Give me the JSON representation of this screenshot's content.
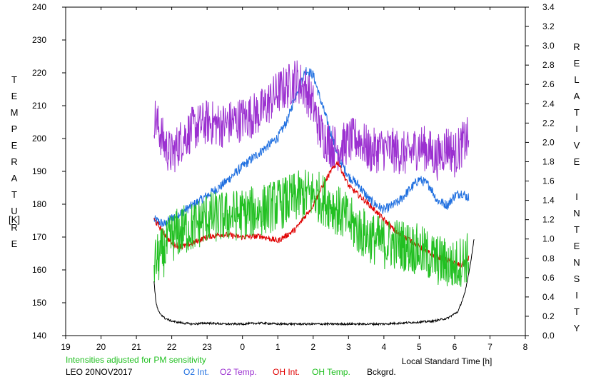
{
  "chart_data": {
    "type": "line",
    "x_axis": {
      "label": "Local Standard Time [h]",
      "ticks": [
        "19",
        "20",
        "21",
        "22",
        "23",
        "0",
        "1",
        "2",
        "3",
        "4",
        "5",
        "6",
        "7",
        "8"
      ],
      "range": [
        19,
        32
      ]
    },
    "y_left": {
      "label_letters": [
        "T",
        "E",
        "M",
        "P",
        "E",
        "R",
        "A",
        "T",
        "U",
        "R",
        "E",
        "[K]"
      ],
      "ticks": [
        "140",
        "150",
        "160",
        "170",
        "180",
        "190",
        "200",
        "210",
        "220",
        "230",
        "240"
      ],
      "range": [
        140,
        240
      ]
    },
    "y_right": {
      "label_letters": [
        "R",
        "E",
        "L",
        "A",
        "T",
        "I",
        "V",
        "E",
        "I",
        "N",
        "T",
        "E",
        "N",
        "S",
        "I",
        "T",
        "Y"
      ],
      "ticks": [
        "0.0",
        "0.2",
        "0.4",
        "0.6",
        "0.8",
        "1.0",
        "1.2",
        "1.4",
        "1.6",
        "1.8",
        "2.0",
        "2.2",
        "2.4",
        "2.6",
        "2.8",
        "3.0",
        "3.2",
        "3.4"
      ],
      "range": [
        0,
        3.4
      ]
    },
    "note": "Intensities adjusted for PM sensitivity",
    "station": "LEO 20NOV2017",
    "series": [
      {
        "name": "O2 Int.",
        "axis": "right",
        "color": "#1f6fe0",
        "noise": 0.05,
        "x": [
          21.5,
          21.8,
          22.0,
          22.3,
          22.6,
          23.0,
          23.4,
          24.0,
          24.5,
          25.0,
          25.3,
          25.5,
          25.8,
          26.0,
          26.2,
          26.5,
          26.7,
          27.0,
          27.3,
          27.6,
          28.0,
          28.4,
          28.7,
          29.0,
          29.3,
          29.5,
          29.8,
          30.0,
          30.2,
          30.4
        ],
        "y": [
          1.2,
          1.15,
          1.22,
          1.28,
          1.35,
          1.45,
          1.55,
          1.75,
          1.9,
          2.05,
          2.25,
          2.5,
          2.75,
          2.7,
          2.45,
          2.1,
          1.85,
          1.65,
          1.55,
          1.4,
          1.3,
          1.38,
          1.5,
          1.62,
          1.55,
          1.4,
          1.35,
          1.45,
          1.48,
          1.42
        ]
      },
      {
        "name": "O2 Temp.",
        "axis": "left",
        "color": "#9b30d0",
        "noise": 7,
        "x": [
          21.5,
          21.8,
          22.0,
          22.3,
          22.6,
          23.0,
          23.4,
          24.0,
          24.5,
          25.0,
          25.3,
          25.5,
          25.8,
          26.0,
          26.2,
          26.5,
          26.7,
          27.0,
          27.3,
          27.6,
          28.0,
          28.4,
          28.7,
          29.0,
          29.3,
          29.5,
          29.8,
          30.0,
          30.2,
          30.4
        ],
        "y": [
          207,
          198,
          195,
          200,
          203,
          205,
          204,
          206,
          208,
          214,
          216,
          218,
          215,
          210,
          202,
          198,
          197,
          199,
          200,
          196,
          197,
          196,
          195,
          198,
          196,
          194,
          198,
          195,
          198,
          200
        ]
      },
      {
        "name": "OH Int.",
        "axis": "right",
        "color": "#e00000",
        "noise": 0.03,
        "x": [
          21.5,
          21.8,
          22.0,
          22.3,
          22.6,
          23.0,
          23.4,
          24.0,
          24.5,
          25.0,
          25.3,
          25.5,
          25.8,
          26.0,
          26.2,
          26.5,
          26.7,
          27.0,
          27.3,
          27.6,
          28.0,
          28.4,
          28.7,
          29.0,
          29.3,
          29.5,
          29.8,
          30.0,
          30.2,
          30.4
        ],
        "y": [
          1.2,
          1.05,
          0.95,
          0.92,
          0.96,
          1.02,
          1.05,
          1.02,
          1.03,
          0.98,
          1.05,
          1.1,
          1.25,
          1.35,
          1.5,
          1.7,
          1.8,
          1.55,
          1.45,
          1.35,
          1.2,
          1.05,
          1.0,
          0.92,
          0.85,
          0.82,
          0.78,
          0.75,
          0.72,
          0.8
        ]
      },
      {
        "name": "OH Temp.",
        "axis": "left",
        "color": "#22c022",
        "noise": 8,
        "x": [
          21.5,
          21.8,
          22.0,
          22.3,
          22.6,
          23.0,
          23.4,
          24.0,
          24.5,
          25.0,
          25.3,
          25.5,
          25.8,
          26.0,
          26.2,
          26.5,
          26.7,
          27.0,
          27.3,
          27.6,
          28.0,
          28.4,
          28.7,
          29.0,
          29.3,
          29.5,
          29.8,
          30.0,
          30.2,
          30.4
        ],
        "y": [
          162,
          166,
          170,
          172,
          173,
          176,
          176,
          177,
          178,
          180,
          181,
          182,
          183,
          183,
          182,
          180,
          178,
          175,
          172,
          170,
          168,
          168,
          167,
          166,
          164,
          163,
          162,
          161,
          163,
          164
        ]
      },
      {
        "name": "Bckgrd.",
        "axis": "right",
        "color": "#000000",
        "noise": 0.01,
        "x": [
          21.5,
          21.55,
          21.62,
          21.8,
          22.0,
          22.3,
          22.6,
          23.0,
          23.5,
          24.0,
          24.5,
          25.0,
          25.5,
          26.0,
          26.5,
          27.0,
          27.5,
          28.0,
          28.5,
          29.0,
          29.4,
          29.8,
          30.1,
          30.3,
          30.45,
          30.55
        ],
        "y": [
          0.56,
          0.35,
          0.25,
          0.18,
          0.15,
          0.13,
          0.12,
          0.13,
          0.12,
          0.12,
          0.13,
          0.12,
          0.12,
          0.12,
          0.12,
          0.12,
          0.12,
          0.12,
          0.13,
          0.14,
          0.15,
          0.18,
          0.25,
          0.45,
          0.75,
          1.0
        ]
      }
    ]
  }
}
